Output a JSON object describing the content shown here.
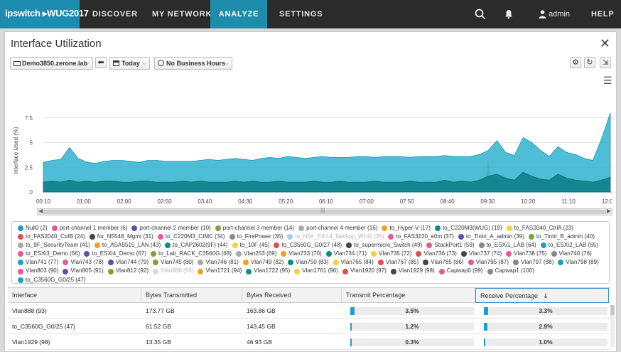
{
  "nav": {
    "logo": "ipswitch ▸WUG2017",
    "items": [
      "DISCOVER",
      "MY NETWORK",
      "ANALYZE",
      "SETTINGS"
    ],
    "active": "ANALYZE",
    "user": "admin",
    "help": "HELP"
  },
  "panel": {
    "title": "Interface Utilization",
    "device": "Demo3850.zerone.lab",
    "date_range": "Today",
    "business_hours": "No Business Hours"
  },
  "chart_data": {
    "type": "area",
    "ylabel": "Interface Used (%)",
    "y_ticks": [
      "7.5",
      "5",
      "2.5",
      "0"
    ],
    "ylim": [
      0,
      9.5
    ],
    "x_ticks": [
      "00:10",
      "01:00",
      "02:00",
      "02:50",
      "03:40",
      "04:30",
      "05:20",
      "06:10",
      "07:00",
      "07:50",
      "08:40",
      "09:30",
      "10:20",
      "11:10",
      "12:00"
    ],
    "colors": {
      "primary": "#2fb1cf",
      "secondary": "#0f7f8a",
      "tertiary": "#1f6fa6",
      "accent": "#e8a020"
    },
    "series": [
      {
        "values": [
          3.0,
          3.2,
          3.3,
          4.5,
          3.4,
          3.0,
          2.9,
          3.1,
          3.2,
          3.2,
          3.1,
          3.0,
          3.2,
          3.2,
          3.1,
          3.1,
          3.1,
          3.1,
          3.2,
          3.3,
          3.2,
          3.3,
          3.4,
          3.3,
          3.2,
          3.4,
          3.5,
          3.4,
          3.6,
          3.5,
          3.4,
          3.5,
          3.6,
          3.5,
          3.5,
          3.5,
          3.6,
          3.6,
          3.5,
          3.6,
          3.6,
          3.6,
          3.5,
          3.6,
          3.6,
          3.6,
          3.7,
          3.6,
          3.6,
          3.6,
          3.8,
          4.2,
          5.2,
          4.0,
          3.7,
          5.5,
          5.0,
          4.2,
          3.6,
          4.6,
          4.0,
          3.8,
          3.4,
          3.2,
          5.4,
          8.0
        ]
      },
      {
        "values": [
          1.0,
          1.1,
          1.0,
          1.2,
          1.0,
          1.1,
          1.0,
          1.1,
          1.1,
          1.0,
          1.0,
          1.1,
          1.1,
          1.0,
          1.0,
          1.0,
          1.1,
          1.0,
          1.1,
          1.0,
          1.0,
          1.0,
          1.1,
          1.0,
          1.1,
          1.0,
          1.0,
          1.1,
          1.0,
          1.0,
          1.0,
          1.1,
          1.0,
          1.0,
          1.1,
          1.0,
          1.0,
          1.0,
          1.1,
          1.0,
          1.0,
          1.0,
          1.1,
          1.0,
          1.0,
          1.0,
          1.2,
          1.0,
          1.1,
          1.0,
          1.2,
          1.6,
          1.8,
          1.4,
          1.2,
          2.0,
          1.6,
          1.3,
          1.2,
          1.8,
          1.4,
          1.2,
          1.1,
          1.0,
          1.2,
          1.5
        ]
      }
    ]
  },
  "legend": [
    {
      "label": "Null0 (2)",
      "color": "#1f9fc8"
    },
    {
      "label": "port-channel 1 member (6)",
      "color": "#e5599a"
    },
    {
      "label": "port-channel 2 member (10)",
      "color": "#6a4ba3"
    },
    {
      "label": "port-channel 3 member (14)",
      "color": "#7aa33a"
    },
    {
      "label": "port-channel 4 member (16)",
      "color": "#aaaaaa"
    },
    {
      "label": "to_Hyper-V (17)",
      "color": "#f0a020"
    },
    {
      "label": "to_C220M3(WUG) (19)",
      "color": "#0e8a8a"
    },
    {
      "label": "to_FAS2040_CtrlA (23)",
      "color": "#f2d13a"
    },
    {
      "label": "to_FAS2040_CtrlB (24)",
      "color": "#e04f4f"
    },
    {
      "label": "for_N5548_Mgmt (31)",
      "color": "#444444"
    },
    {
      "label": "to_C220M3_CIMC (34)",
      "color": "#e5599a"
    },
    {
      "label": "to_FirePower (35)",
      "color": "#888888"
    },
    {
      "label": "to_N5K_Eth14_NetApp_WUG (36)",
      "color": "#1f9fc8",
      "dim": true
    },
    {
      "label": "to_FAS3220_e0m (37)",
      "color": "#e5599a"
    },
    {
      "label": "to_Tintri_A_admin (39)",
      "color": "#6a4ba3"
    },
    {
      "label": "to_Tintri_B_admin (40)",
      "color": "#7aa33a"
    },
    {
      "label": "to_9F_SecurityTeam (41)",
      "color": "#aaaaaa"
    },
    {
      "label": "to_ASA5515_LAN (43)",
      "color": "#f0a020"
    },
    {
      "label": "to_CAP2602(9F) (44)",
      "color": "#0e8a8a"
    },
    {
      "label": "to_10F (45)",
      "color": "#f2d13a"
    },
    {
      "label": "to_C3560G_G0/27 (48)",
      "color": "#e04f4f"
    },
    {
      "label": "to_supermicro_Switch (49)",
      "color": "#444444"
    },
    {
      "label": "StackPort1 (59)",
      "color": "#e5599a"
    },
    {
      "label": "to_ESXi1_LAB (64)",
      "color": "#888888"
    },
    {
      "label": "to_ESXi2_LAB (65)",
      "color": "#1f9fc8"
    },
    {
      "label": "to_ESXi3_Demo (66)",
      "color": "#e5599a"
    },
    {
      "label": "to_ESXi4_Demo (67)",
      "color": "#6a4ba3"
    },
    {
      "label": "to_Lab_RACK_C3560G (68)",
      "color": "#7aa33a"
    },
    {
      "label": "Vlan253 (69)",
      "color": "#aaaaaa"
    },
    {
      "label": "Vlan733 (70)",
      "color": "#f0a020"
    },
    {
      "label": "Vlan734 (71)",
      "color": "#0e8a8a"
    },
    {
      "label": "Vlan735 (72)",
      "color": "#f2d13a"
    },
    {
      "label": "Vlan736 (73)",
      "color": "#e04f4f"
    },
    {
      "label": "Vlan737 (74)",
      "color": "#444444"
    },
    {
      "label": "Vlan738 (75)",
      "color": "#e5599a"
    },
    {
      "label": "Vlan740 (76)",
      "color": "#888888"
    },
    {
      "label": "Vlan741 (77)",
      "color": "#1f9fc8"
    },
    {
      "label": "Vlan743 (78)",
      "color": "#e5599a"
    },
    {
      "label": "Vlan744 (79)",
      "color": "#6a4ba3"
    },
    {
      "label": "Vlan745 (80)",
      "color": "#7aa33a"
    },
    {
      "label": "Vlan746 (81)",
      "color": "#aaaaaa"
    },
    {
      "label": "Vlan749 (82)",
      "color": "#f0a020"
    },
    {
      "label": "Vlan750 (83)",
      "color": "#0e8a8a"
    },
    {
      "label": "Vlan765 (84)",
      "color": "#f2d13a"
    },
    {
      "label": "Vlan767 (85)",
      "color": "#e04f4f"
    },
    {
      "label": "Vlan785 (86)",
      "color": "#444444"
    },
    {
      "label": "Vlan795 (87)",
      "color": "#e5599a"
    },
    {
      "label": "Vlan797 (88)",
      "color": "#888888"
    },
    {
      "label": "Vlan798 (89)",
      "color": "#1f9fc8"
    },
    {
      "label": "Vlan803 (90)",
      "color": "#e5599a"
    },
    {
      "label": "Vlan805 (91)",
      "color": "#6a4ba3"
    },
    {
      "label": "Vlan812 (92)",
      "color": "#7aa33a"
    },
    {
      "label": "Vlan888 (93)",
      "color": "#aaaaaa",
      "dim": true
    },
    {
      "label": "Vlan1721 (94)",
      "color": "#f0a020"
    },
    {
      "label": "Vlan1722 (95)",
      "color": "#0e8a8a"
    },
    {
      "label": "Vlan1761 (96)",
      "color": "#f2d13a"
    },
    {
      "label": "Vlan1920 (97)",
      "color": "#e04f4f"
    },
    {
      "label": "Vlan1929 (98)",
      "color": "#444444"
    },
    {
      "label": "Capwap0 (99)",
      "color": "#e5599a"
    },
    {
      "label": "Capwap1 (100)",
      "color": "#888888"
    },
    {
      "label": "to_C3560G_G0/25 (47)",
      "color": "#1f9fc8"
    }
  ],
  "table": {
    "headers": [
      "Interface",
      "Bytes Transmitted",
      "Bytes Received",
      "Transmit Percentage",
      "Receive Percentage"
    ],
    "rows": [
      {
        "interface": "Vlan888 (93)",
        "tx": "173.77 GB",
        "rx": "163.86 GB",
        "tx_pct": "3.5%",
        "rx_pct": "3.3%",
        "tx_val": 3.5,
        "rx_val": 3.3
      },
      {
        "interface": "to_C3560G_G0/25 (47)",
        "tx": "61.52 GB",
        "rx": "143.45 GB",
        "tx_pct": "1.2%",
        "rx_pct": "2.9%",
        "tx_val": 1.2,
        "rx_val": 2.9
      },
      {
        "interface": "Vlan1929 (98)",
        "tx": "13.35 GB",
        "rx": "46.93 GB",
        "tx_pct": "0.3%",
        "rx_pct": "1.0%",
        "tx_val": 0.3,
        "rx_val": 1.0
      }
    ]
  }
}
